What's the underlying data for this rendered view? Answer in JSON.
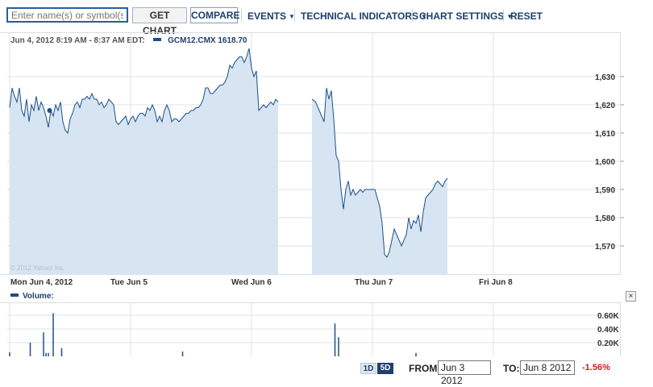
{
  "toolbar": {
    "symbol_placeholder": "Enter name(s) or symbol(s)",
    "get_chart_label": "GET CHART",
    "compare_label": "COMPARE",
    "events_label": "EVENTS",
    "technical_indicators_label": "TECHNICAL INDICATORS",
    "chart_settings_label": "CHART SETTINGS",
    "reset_label": "RESET"
  },
  "chart_header": {
    "time_range": "Jun 4, 2012 8:19 AM - 8:37 AM EDT:",
    "series_label": "GCM12.CMX 1618.70"
  },
  "copyright": "© 2012 Yahoo! Inc.",
  "volume_label": "Volume:",
  "close_label": "×",
  "range": {
    "one_day": "1D",
    "five_day": "5D"
  },
  "from": {
    "label": "FROM:",
    "value": "Jun 3 2012"
  },
  "to": {
    "label": "TO:",
    "value": "Jun 8 2012"
  },
  "change": "-1.56%",
  "colors": {
    "line": "#1d4f8c",
    "fill": "#d6e5f1",
    "grid": "#dde3e9",
    "change_negative": "#cc1f1f",
    "accent": "#1d3f6e"
  },
  "chart_data": {
    "type": "area",
    "series_name": "GCM12.CMX",
    "x_tick_labels": [
      "Mon Jun 4, 2012",
      "Tue Jun 5",
      "Wed Jun 6",
      "Thu Jun 7",
      "Fri Jun 8"
    ],
    "y_tick_labels": [
      "1,570",
      "1,580",
      "1,590",
      "1,600",
      "1,610",
      "1,620",
      "1,630"
    ],
    "y_ticks": [
      1570,
      1580,
      1590,
      1600,
      1610,
      1620,
      1630
    ],
    "ylim": [
      1562,
      1640
    ],
    "grid": true,
    "x_unit": "trading days since Mon Jun 4 open",
    "segments": [
      [
        [
          0.0,
          1619
        ],
        [
          0.02,
          1626
        ],
        [
          0.04,
          1623
        ],
        [
          0.06,
          1621
        ],
        [
          0.08,
          1626
        ],
        [
          0.1,
          1618
        ],
        [
          0.12,
          1616
        ],
        [
          0.14,
          1622
        ],
        [
          0.16,
          1614
        ],
        [
          0.18,
          1620
        ],
        [
          0.2,
          1618
        ],
        [
          0.22,
          1623
        ],
        [
          0.24,
          1618
        ],
        [
          0.26,
          1621
        ],
        [
          0.28,
          1619
        ],
        [
          0.3,
          1616
        ],
        [
          0.32,
          1612
        ],
        [
          0.34,
          1618
        ],
        [
          0.36,
          1616
        ],
        [
          0.38,
          1620
        ],
        [
          0.4,
          1618
        ],
        [
          0.42,
          1621
        ],
        [
          0.44,
          1614
        ],
        [
          0.46,
          1611
        ],
        [
          0.48,
          1610
        ],
        [
          0.5,
          1615
        ],
        [
          0.52,
          1617
        ],
        [
          0.54,
          1620
        ],
        [
          0.56,
          1621
        ],
        [
          0.58,
          1619
        ],
        [
          0.6,
          1622
        ],
        [
          0.62,
          1622
        ],
        [
          0.64,
          1623
        ],
        [
          0.66,
          1622
        ],
        [
          0.68,
          1624
        ],
        [
          0.7,
          1622
        ],
        [
          0.72,
          1622
        ],
        [
          0.74,
          1620
        ],
        [
          0.76,
          1621
        ],
        [
          0.78,
          1619
        ],
        [
          0.8,
          1620
        ],
        [
          0.82,
          1622
        ],
        [
          0.84,
          1621
        ],
        [
          0.86,
          1620
        ],
        [
          0.88,
          1614
        ],
        [
          0.9,
          1613
        ],
        [
          0.92,
          1614
        ],
        [
          0.94,
          1615
        ],
        [
          0.96,
          1616
        ],
        [
          0.98,
          1613
        ],
        [
          1.0,
          1615
        ],
        [
          1.02,
          1616
        ],
        [
          1.04,
          1614
        ],
        [
          1.06,
          1616
        ],
        [
          1.08,
          1617
        ],
        [
          1.1,
          1617
        ],
        [
          1.12,
          1616
        ],
        [
          1.14,
          1619
        ],
        [
          1.16,
          1618
        ],
        [
          1.18,
          1620
        ],
        [
          1.2,
          1618
        ],
        [
          1.22,
          1614
        ],
        [
          1.24,
          1616
        ],
        [
          1.26,
          1614
        ],
        [
          1.28,
          1618
        ],
        [
          1.3,
          1620
        ],
        [
          1.32,
          1618
        ],
        [
          1.34,
          1614
        ],
        [
          1.36,
          1615
        ],
        [
          1.38,
          1615
        ],
        [
          1.4,
          1614
        ],
        [
          1.42,
          1615
        ],
        [
          1.44,
          1616
        ],
        [
          1.46,
          1617
        ],
        [
          1.48,
          1617
        ],
        [
          1.5,
          1618
        ],
        [
          1.52,
          1618
        ],
        [
          1.54,
          1619
        ],
        [
          1.56,
          1619
        ],
        [
          1.58,
          1620
        ],
        [
          1.6,
          1622
        ],
        [
          1.62,
          1626
        ],
        [
          1.64,
          1626
        ],
        [
          1.66,
          1624
        ],
        [
          1.68,
          1624
        ],
        [
          1.7,
          1625
        ],
        [
          1.72,
          1626
        ],
        [
          1.74,
          1627
        ],
        [
          1.76,
          1627
        ],
        [
          1.78,
          1628
        ],
        [
          1.8,
          1630
        ],
        [
          1.82,
          1634
        ],
        [
          1.84,
          1633
        ],
        [
          1.86,
          1635
        ],
        [
          1.88,
          1636
        ],
        [
          1.9,
          1637
        ],
        [
          1.92,
          1637
        ],
        [
          1.94,
          1635
        ],
        [
          1.96,
          1637
        ],
        [
          1.98,
          1640
        ],
        [
          2.0,
          1633
        ],
        [
          2.02,
          1630
        ],
        [
          2.04,
          1632
        ],
        [
          2.06,
          1618
        ],
        [
          2.08,
          1619
        ],
        [
          2.1,
          1620
        ],
        [
          2.12,
          1619
        ],
        [
          2.14,
          1620
        ],
        [
          2.16,
          1621
        ],
        [
          2.18,
          1620
        ],
        [
          2.2,
          1622
        ],
        [
          2.22,
          1621
        ]
      ],
      [
        [
          2.5,
          1622
        ],
        [
          2.53,
          1621
        ],
        [
          2.56,
          1618
        ],
        [
          2.6,
          1614
        ],
        [
          2.62,
          1626
        ],
        [
          2.64,
          1622
        ],
        [
          2.66,
          1625
        ],
        [
          2.68,
          1615
        ],
        [
          2.7,
          1602
        ],
        [
          2.72,
          1600
        ],
        [
          2.74,
          1590
        ],
        [
          2.76,
          1583
        ],
        [
          2.78,
          1590
        ],
        [
          2.8,
          1593
        ],
        [
          2.82,
          1588
        ],
        [
          2.84,
          1590
        ],
        [
          2.86,
          1588
        ],
        [
          2.88,
          1589
        ],
        [
          2.9,
          1590
        ],
        [
          2.92,
          1589
        ],
        [
          2.94,
          1590
        ],
        [
          2.96,
          1590
        ],
        [
          2.98,
          1590
        ],
        [
          3.0,
          1590
        ],
        [
          3.02,
          1590
        ],
        [
          3.04,
          1587
        ],
        [
          3.06,
          1584
        ],
        [
          3.08,
          1578
        ],
        [
          3.1,
          1567
        ],
        [
          3.12,
          1566
        ],
        [
          3.14,
          1568
        ],
        [
          3.16,
          1572
        ],
        [
          3.18,
          1576
        ],
        [
          3.2,
          1574
        ],
        [
          3.22,
          1572
        ],
        [
          3.24,
          1570
        ],
        [
          3.26,
          1572
        ],
        [
          3.28,
          1574
        ],
        [
          3.3,
          1580
        ],
        [
          3.32,
          1576
        ],
        [
          3.34,
          1579
        ],
        [
          3.36,
          1578
        ],
        [
          3.38,
          1581
        ],
        [
          3.4,
          1575
        ],
        [
          3.42,
          1582
        ],
        [
          3.44,
          1587
        ],
        [
          3.46,
          1588
        ],
        [
          3.48,
          1589
        ],
        [
          3.5,
          1590
        ],
        [
          3.52,
          1592
        ],
        [
          3.54,
          1593
        ],
        [
          3.56,
          1592
        ],
        [
          3.58,
          1591
        ],
        [
          3.6,
          1593
        ],
        [
          3.62,
          1594
        ]
      ]
    ],
    "volume_ticks": [
      "0.20K",
      "0.40K",
      "0.60K"
    ],
    "volume": [
      [
        0.0,
        0.06
      ],
      [
        0.17,
        0.2
      ],
      [
        0.28,
        0.35
      ],
      [
        0.3,
        0.05
      ],
      [
        0.32,
        0.05
      ],
      [
        0.36,
        0.63
      ],
      [
        0.43,
        0.12
      ],
      [
        1.43,
        0.07
      ],
      [
        2.69,
        0.48
      ],
      [
        2.72,
        0.28
      ],
      [
        3.36,
        0.05
      ]
    ]
  }
}
